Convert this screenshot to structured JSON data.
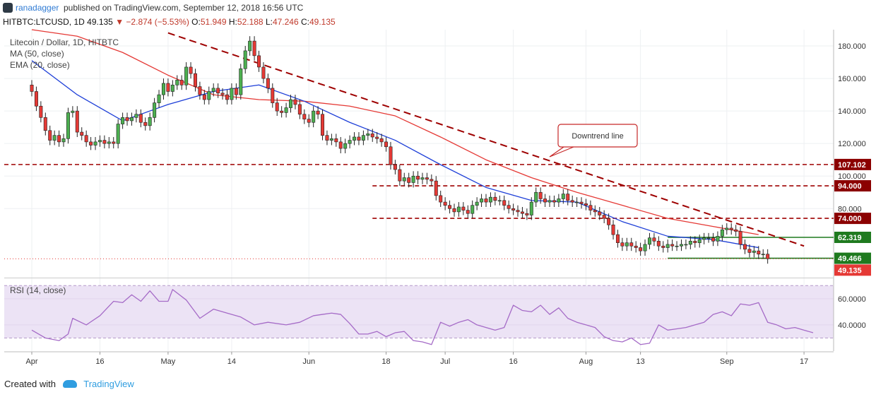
{
  "header": {
    "author": "ranadagger",
    "published": "published on TradingView.com, September 12, 2018 16:56 UTC"
  },
  "quote": {
    "symbol": "HITBTC:LTCUSD, 1D",
    "last": "49.135",
    "change": "−2.874 (−5.53%)",
    "o_label": "O:",
    "o": "51.949",
    "h_label": "H:",
    "h": "52.188",
    "l_label": "L:",
    "l": "47.246",
    "c_label": "C:",
    "c": "49.135"
  },
  "legend": {
    "title": "Litecoin / Dollar, 1D, HITBTC",
    "ma": "MA (50, close)",
    "ema": "EMA (20, close)",
    "rsi": "RSI (14, close)"
  },
  "footer": {
    "created": "Created with",
    "brand": "TradingView"
  },
  "colors": {
    "up": "#4caf50",
    "down": "#e53935",
    "ma": "#e53935",
    "ema": "#1e3fd8",
    "rsi": "#a56bc7",
    "rsi_band": "#ece3f5",
    "level": "#9e0000",
    "support": "#1f7a1f",
    "last_price": "#e53935",
    "grid": "#eef0f2"
  },
  "chart_data": [
    {
      "type": "candlestick",
      "title": "Litecoin / Dollar, 1D, HITBTC",
      "x_ticks": [
        "Apr",
        "16",
        "May",
        "14",
        "Jun",
        "18",
        "Jul",
        "16",
        "Aug",
        "13",
        "Sep",
        "17"
      ],
      "x_tick_days": [
        0,
        15,
        30,
        44,
        61,
        78,
        91,
        106,
        122,
        134,
        153,
        170
      ],
      "y_ticks": [
        "80.000",
        "100.000",
        "120.000",
        "140.000",
        "160.000",
        "180.000"
      ],
      "ylim": [
        38,
        190
      ],
      "start_date": "2018-03-26",
      "closes": [
        152,
        143,
        136,
        128,
        122,
        125,
        121,
        123,
        139,
        140,
        127,
        125,
        121,
        119,
        121,
        122,
        120,
        121,
        120,
        132,
        136,
        134,
        136,
        138,
        133,
        131,
        136,
        145,
        150,
        157,
        152,
        156,
        159,
        156,
        167,
        163,
        155,
        150,
        147,
        152,
        154,
        151,
        150,
        147,
        154,
        150,
        166,
        177,
        183,
        174,
        167,
        160,
        154,
        145,
        140,
        139,
        142,
        147,
        144,
        138,
        135,
        133,
        140,
        138,
        125,
        122,
        123,
        121,
        117,
        120,
        122,
        124,
        122,
        125,
        126,
        124,
        123,
        121,
        118,
        107,
        104,
        97,
        99,
        96,
        100,
        98,
        99,
        98,
        97,
        88,
        84,
        82,
        80,
        78,
        81,
        79,
        77,
        82,
        84,
        86,
        84,
        87,
        85,
        85,
        82,
        80,
        79,
        78,
        77,
        76,
        84,
        90,
        86,
        84,
        85,
        84,
        86,
        89,
        85,
        84,
        84,
        83,
        82,
        79,
        78,
        76,
        74,
        70,
        64,
        59,
        57,
        59,
        57,
        56,
        54,
        58,
        62,
        60,
        57,
        56,
        58,
        57,
        57,
        58,
        58,
        60,
        59,
        61,
        62,
        62,
        60,
        63,
        67,
        68,
        67,
        66,
        58,
        55,
        53,
        54,
        52,
        52,
        49.135
      ],
      "ma_50": [
        [
          0,
          190
        ],
        [
          10,
          186
        ],
        [
          20,
          176
        ],
        [
          30,
          162
        ],
        [
          40,
          150
        ],
        [
          50,
          147
        ],
        [
          60,
          146
        ],
        [
          70,
          143
        ],
        [
          80,
          137
        ],
        [
          90,
          124
        ],
        [
          100,
          110
        ],
        [
          110,
          99
        ],
        [
          120,
          90
        ],
        [
          130,
          82
        ],
        [
          140,
          74
        ],
        [
          150,
          69
        ],
        [
          160,
          64
        ]
      ],
      "ema_20": [
        [
          0,
          171
        ],
        [
          10,
          150
        ],
        [
          20,
          134
        ],
        [
          30,
          144
        ],
        [
          40,
          152
        ],
        [
          50,
          156
        ],
        [
          60,
          146
        ],
        [
          70,
          133
        ],
        [
          80,
          122
        ],
        [
          90,
          107
        ],
        [
          100,
          93
        ],
        [
          110,
          85
        ],
        [
          120,
          84
        ],
        [
          130,
          72
        ],
        [
          140,
          63
        ],
        [
          150,
          61
        ],
        [
          160,
          56
        ]
      ],
      "horizontal_levels": [
        {
          "value": 107.102,
          "label": "107.102",
          "style": "dashed",
          "color": "#9e0000"
        },
        {
          "value": 94.0,
          "label": "94.000",
          "style": "dashed",
          "color": "#9e0000"
        },
        {
          "value": 74.0,
          "label": "74.000",
          "style": "dashed",
          "color": "#9e0000"
        },
        {
          "value": 62.319,
          "label": "62.319",
          "style": "solid",
          "color": "#1f7a1f"
        },
        {
          "value": 49.466,
          "label": "49.466",
          "style": "solid",
          "color": "#1f7a1f"
        }
      ],
      "last_price": {
        "value": 49.135,
        "label": "49.135"
      },
      "downtrend_line": {
        "from": [
          30,
          188
        ],
        "to": [
          170,
          57
        ]
      },
      "annotation": {
        "text": "Downtrend line"
      }
    },
    {
      "type": "line",
      "title": "RSI (14, close)",
      "y_ticks": [
        "40.0000",
        "60.0000"
      ],
      "ylim": [
        20,
        75
      ],
      "band": [
        30,
        70
      ],
      "values": [
        [
          0,
          36
        ],
        [
          3,
          30
        ],
        [
          6,
          28
        ],
        [
          8,
          33
        ],
        [
          9,
          45
        ],
        [
          12,
          40
        ],
        [
          15,
          47
        ],
        [
          18,
          58
        ],
        [
          20,
          57
        ],
        [
          22,
          63
        ],
        [
          24,
          58
        ],
        [
          26,
          66
        ],
        [
          28,
          58
        ],
        [
          30,
          58
        ],
        [
          31,
          67
        ],
        [
          34,
          59
        ],
        [
          37,
          45
        ],
        [
          40,
          52
        ],
        [
          43,
          49
        ],
        [
          46,
          46
        ],
        [
          49,
          40
        ],
        [
          52,
          42
        ],
        [
          56,
          40
        ],
        [
          59,
          42
        ],
        [
          62,
          47
        ],
        [
          64,
          48
        ],
        [
          66,
          49
        ],
        [
          68,
          48
        ],
        [
          70,
          41
        ],
        [
          72,
          33
        ],
        [
          74,
          33
        ],
        [
          76,
          35
        ],
        [
          78,
          31
        ],
        [
          80,
          34
        ],
        [
          82,
          35
        ],
        [
          84,
          28
        ],
        [
          86,
          27
        ],
        [
          88,
          25
        ],
        [
          90,
          42
        ],
        [
          92,
          39
        ],
        [
          94,
          42
        ],
        [
          96,
          44
        ],
        [
          98,
          40
        ],
        [
          100,
          38
        ],
        [
          102,
          36
        ],
        [
          104,
          38
        ],
        [
          106,
          55
        ],
        [
          108,
          51
        ],
        [
          110,
          50
        ],
        [
          112,
          55
        ],
        [
          114,
          48
        ],
        [
          116,
          53
        ],
        [
          118,
          45
        ],
        [
          120,
          42
        ],
        [
          122,
          40
        ],
        [
          124,
          38
        ],
        [
          126,
          31
        ],
        [
          128,
          28
        ],
        [
          130,
          27
        ],
        [
          132,
          30
        ],
        [
          134,
          25
        ],
        [
          136,
          26
        ],
        [
          138,
          40
        ],
        [
          140,
          36
        ],
        [
          142,
          37
        ],
        [
          144,
          38
        ],
        [
          146,
          40
        ],
        [
          148,
          42
        ],
        [
          150,
          48
        ],
        [
          152,
          50
        ],
        [
          154,
          47
        ],
        [
          156,
          56
        ],
        [
          158,
          55
        ],
        [
          160,
          57
        ],
        [
          162,
          42
        ],
        [
          164,
          40
        ],
        [
          166,
          37
        ],
        [
          168,
          38
        ],
        [
          170,
          36
        ],
        [
          172,
          34
        ]
      ]
    }
  ]
}
